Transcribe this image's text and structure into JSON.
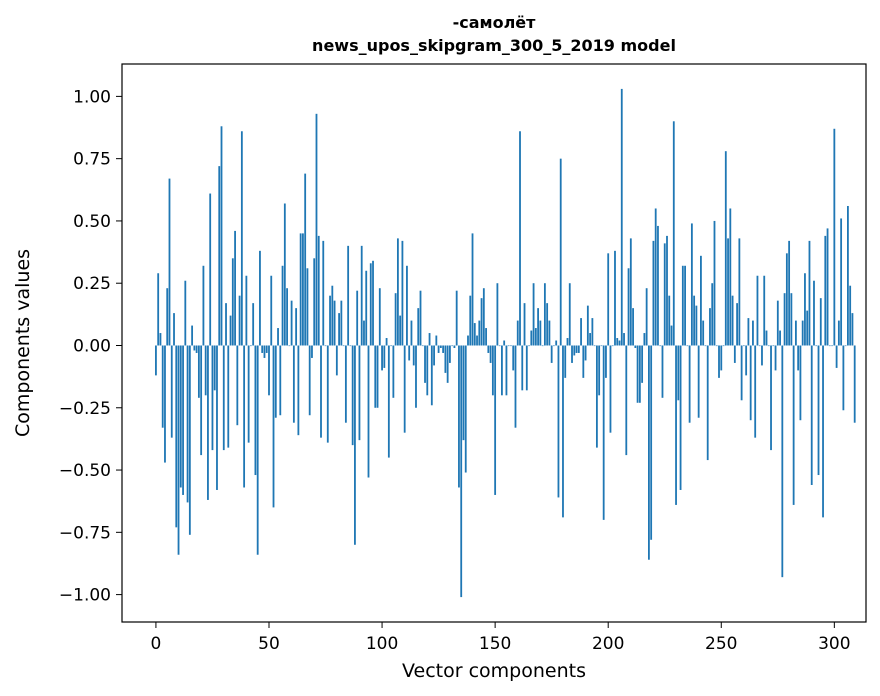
{
  "chart_data": {
    "type": "bar",
    "title_lines": [
      "-самолёт",
      "news_upos_skipgram_300_5_2019 model"
    ],
    "xlabel": "Vector components",
    "ylabel": "Components values",
    "xlim": [
      -15,
      314
    ],
    "ylim": [
      -1.11,
      1.13
    ],
    "xticks": [
      0,
      50,
      100,
      150,
      200,
      250,
      300
    ],
    "xtick_labels": [
      "0",
      "50",
      "100",
      "150",
      "200",
      "250",
      "300"
    ],
    "yticks": [
      1.0,
      0.75,
      0.5,
      0.25,
      0.0,
      -0.25,
      -0.5,
      -0.75,
      -1.0
    ],
    "ytick_labels": [
      "1.00",
      "0.75",
      "0.50",
      "0.25",
      "0.00",
      "−0.25",
      "−0.50",
      "−0.75",
      "−1.00"
    ],
    "bar_color": "#1f77b4",
    "grid": false,
    "values": [
      -0.12,
      0.29,
      0.05,
      -0.33,
      -0.47,
      0.23,
      0.67,
      -0.37,
      0.13,
      -0.73,
      -0.84,
      -0.57,
      -0.6,
      0.26,
      -0.63,
      -0.76,
      0.08,
      -0.02,
      -0.03,
      -0.21,
      -0.44,
      0.32,
      -0.2,
      -0.62,
      0.61,
      -0.42,
      -0.18,
      -0.58,
      0.72,
      0.88,
      -0.42,
      0.17,
      -0.41,
      0.12,
      0.35,
      0.46,
      -0.32,
      0.2,
      0.86,
      -0.57,
      0.28,
      -0.39,
      0.0,
      0.17,
      -0.52,
      -0.84,
      0.38,
      -0.03,
      -0.05,
      -0.03,
      -0.2,
      0.28,
      -0.65,
      -0.29,
      0.07,
      -0.28,
      0.32,
      0.57,
      0.23,
      0.0,
      0.18,
      -0.31,
      0.15,
      -0.36,
      0.45,
      0.45,
      0.69,
      0.31,
      -0.28,
      -0.05,
      0.35,
      0.93,
      0.44,
      -0.37,
      0.42,
      0.0,
      -0.39,
      0.2,
      0.24,
      0.18,
      -0.12,
      0.13,
      0.18,
      0.0,
      -0.31,
      0.4,
      0.0,
      -0.4,
      -0.8,
      0.22,
      -0.38,
      0.4,
      0.1,
      0.3,
      -0.53,
      0.33,
      0.34,
      -0.25,
      -0.25,
      0.23,
      -0.1,
      -0.09,
      0.03,
      -0.45,
      0.0,
      -0.21,
      0.21,
      0.43,
      0.12,
      0.42,
      -0.35,
      0.32,
      -0.06,
      0.1,
      -0.08,
      -0.25,
      0.15,
      0.22,
      0.0,
      -0.15,
      -0.2,
      0.05,
      -0.24,
      -0.08,
      0.04,
      -0.03,
      -0.01,
      -0.03,
      -0.11,
      -0.15,
      -0.07,
      0.0,
      -0.01,
      0.22,
      -0.57,
      -1.01,
      -0.38,
      -0.51,
      0.04,
      0.2,
      0.45,
      0.09,
      0.04,
      0.1,
      0.19,
      0.23,
      0.07,
      -0.03,
      -0.07,
      -0.2,
      -0.6,
      0.25,
      0.0,
      -0.2,
      0.02,
      -0.2,
      0.0,
      0.0,
      -0.1,
      -0.33,
      0.1,
      0.86,
      -0.18,
      0.17,
      -0.18,
      0.0,
      0.06,
      0.25,
      0.07,
      0.15,
      0.1,
      0.0,
      0.25,
      0.17,
      0.1,
      -0.07,
      0.0,
      0.02,
      -0.61,
      0.75,
      -0.69,
      -0.13,
      0.03,
      0.25,
      -0.07,
      -0.04,
      -0.03,
      -0.03,
      0.11,
      -0.13,
      -0.06,
      0.16,
      0.05,
      0.11,
      0.0,
      -0.41,
      -0.2,
      0.0,
      -0.7,
      -0.13,
      0.37,
      -0.35,
      0.0,
      0.38,
      0.03,
      0.02,
      1.03,
      0.05,
      -0.44,
      0.31,
      0.43,
      0.15,
      -0.01,
      -0.23,
      -0.23,
      -0.15,
      0.05,
      0.23,
      -0.86,
      -0.78,
      0.42,
      0.55,
      0.48,
      0.0,
      -0.21,
      0.41,
      0.44,
      0.2,
      0.08,
      0.9,
      -0.64,
      -0.22,
      -0.58,
      0.32,
      0.32,
      0.0,
      -0.31,
      0.49,
      0.2,
      0.16,
      -0.29,
      0.36,
      0.1,
      0.0,
      -0.46,
      0.15,
      0.25,
      0.5,
      0.0,
      -0.13,
      -0.1,
      0.0,
      0.78,
      0.43,
      0.55,
      0.2,
      -0.07,
      0.17,
      0.43,
      -0.22,
      0.0,
      -0.12,
      0.11,
      -0.3,
      0.1,
      -0.37,
      0.28,
      0.0,
      -0.08,
      0.28,
      0.06,
      0.0,
      -0.42,
      0.0,
      -0.1,
      0.18,
      0.06,
      -0.93,
      0.21,
      0.37,
      0.42,
      0.21,
      -0.64,
      0.1,
      -0.1,
      -0.3,
      0.1,
      0.29,
      0.14,
      0.42,
      -0.56,
      0.26,
      0.0,
      -0.52,
      0.19,
      -0.69,
      0.44,
      0.47,
      0.0,
      0.0,
      0.87,
      -0.09,
      0.1,
      0.51,
      -0.26,
      0.0,
      0.56,
      0.24,
      0.13,
      -0.31
    ]
  }
}
